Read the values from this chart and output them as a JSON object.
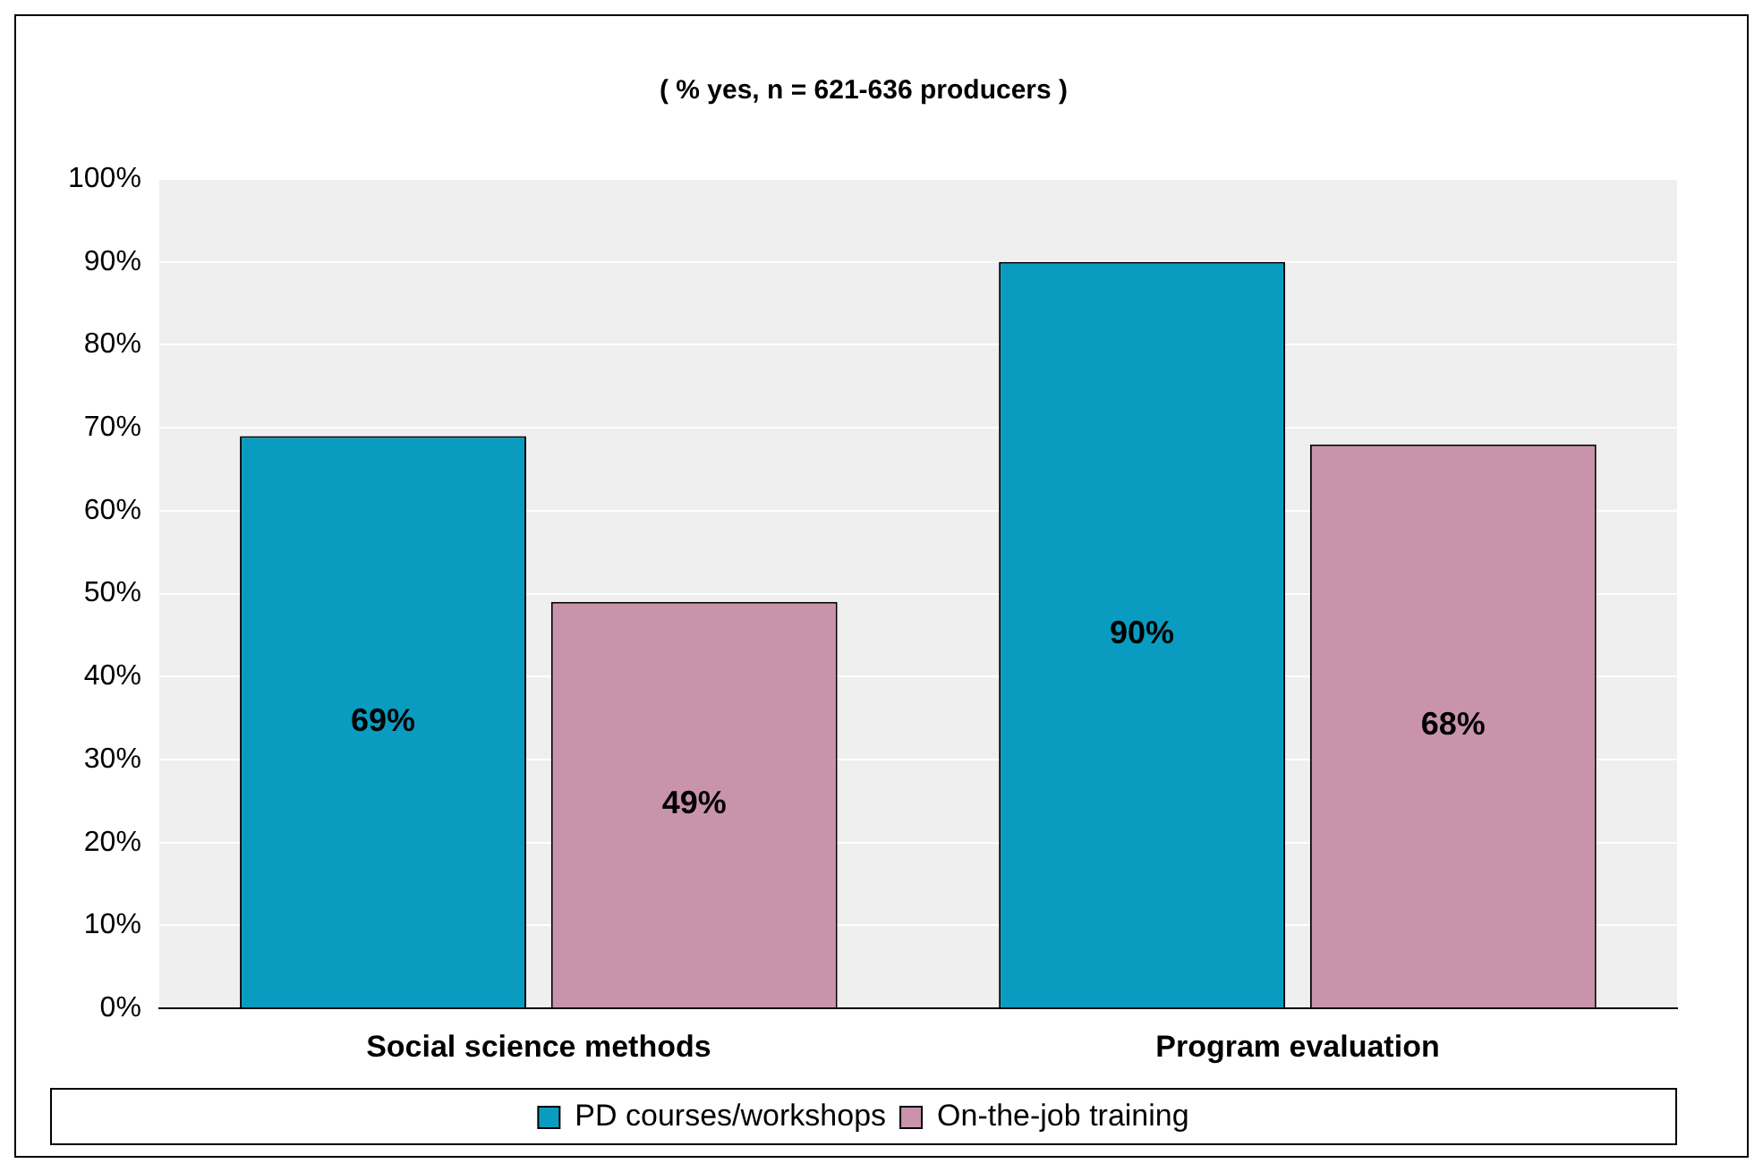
{
  "chart_data": {
    "type": "bar",
    "title": "( % yes, n = 621-636 producers )",
    "categories": [
      "Social science methods",
      "Program evaluation"
    ],
    "series": [
      {
        "name": "PD courses/workshops",
        "color": "#0a9cc0",
        "values": [
          69,
          90
        ],
        "value_labels": [
          "69%",
          "90%"
        ]
      },
      {
        "name": "On-the-job training",
        "color": "#c994ab",
        "values": [
          49,
          68
        ],
        "value_labels": [
          "49%",
          "68%"
        ]
      }
    ],
    "ylim": [
      0,
      100
    ],
    "yticks": [
      {
        "value": 0,
        "label": "0%"
      },
      {
        "value": 10,
        "label": "10%"
      },
      {
        "value": 20,
        "label": "20%"
      },
      {
        "value": 30,
        "label": "30%"
      },
      {
        "value": 40,
        "label": "40%"
      },
      {
        "value": 50,
        "label": "50%"
      },
      {
        "value": 60,
        "label": "60%"
      },
      {
        "value": 70,
        "label": "70%"
      },
      {
        "value": 80,
        "label": "80%"
      },
      {
        "value": 90,
        "label": "90%"
      },
      {
        "value": 100,
        "label": "100%"
      }
    ],
    "grid": "y",
    "legend": "bottom"
  }
}
